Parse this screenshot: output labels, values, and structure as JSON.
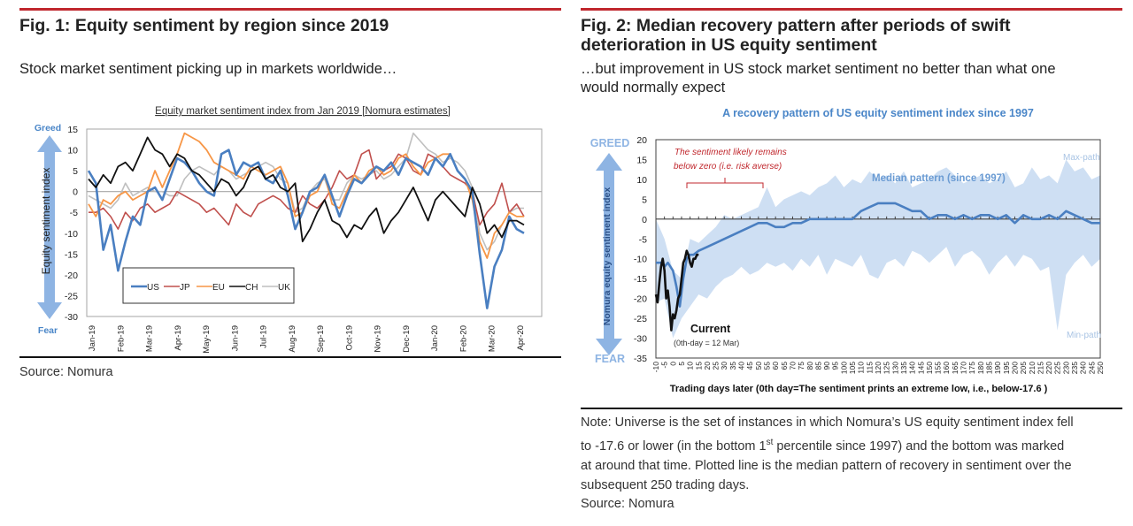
{
  "fig1": {
    "title": "Fig. 1: Equity sentiment by region since 2019",
    "subtitle": "Stock market sentiment picking up in markets worldwide…",
    "source": "Source: Nomura"
  },
  "fig2": {
    "title_line1": "Fig. 2: Median recovery pattern after periods of swift",
    "title_line2": "deterioration in US equity sentiment",
    "subtitle_line1": "…but improvement in US stock market sentiment no better than what one",
    "subtitle_line2": "would normally expect",
    "note_line1": "Note: Universe is the set of instances in which Nomura’s US equity sentiment index fell",
    "note_line2_pre": "to -17.6 or lower (in the bottom 1",
    "note_line2_sup": "st",
    "note_line2_post": " percentile since 1997) and the bottom was marked",
    "note_line3": "at around that time. Plotted line is the median pattern of recovery in sentiment over the",
    "note_line4": "subsequent 250 trading days.",
    "source": "Source: Nomura"
  },
  "colors": {
    "rule_red": "#c0272d",
    "us": "#4a7fc1",
    "jp": "#c0504d",
    "eu": "#f79646",
    "ch": "#111111",
    "uk": "#bfbfbf",
    "band": "#c5d9f1",
    "median": "#4a7fc1",
    "annotation_red": "#c0272d",
    "arrow_blue": "#8eb4e3",
    "label_blue": "#4a86c8"
  },
  "chart_data": [
    {
      "type": "line",
      "title": "Equity market sentiment index from Jan 2019 [Nomura estimates]",
      "ylabel": "Equity sentiment index",
      "y_top_label": "Greed",
      "y_bottom_label": "Fear",
      "ylim": [
        -30,
        15
      ],
      "yticks": [
        15,
        10,
        5,
        0,
        -5,
        -10,
        -15,
        -20,
        -25,
        -30
      ],
      "categories": [
        "Jan-19",
        "Feb-19",
        "Mar-19",
        "Apr-19",
        "May-19",
        "Jun-19",
        "Jul-19",
        "Aug-19",
        "Sep-19",
        "Oct-19",
        "Nov-19",
        "Dec-19",
        "Jan-20",
        "Feb-20",
        "Mar-20",
        "Apr-20"
      ],
      "legend": [
        "US",
        "JP",
        "EU",
        "CH",
        "UK"
      ],
      "legend_position": "bottom-left",
      "x_note": "values sampled roughly twice per month (index 0 = early Jan-19, last = mid Apr-20)",
      "series": [
        {
          "name": "US",
          "values": [
            5,
            2,
            -14,
            -8,
            -19,
            -12,
            -6,
            -8,
            0,
            1,
            -2,
            3,
            8,
            7,
            5,
            2,
            0,
            -1,
            9,
            10,
            4,
            7,
            6,
            7,
            3,
            2,
            5,
            -1,
            -9,
            -5,
            0,
            1,
            4,
            -1,
            -6,
            -1,
            3,
            2,
            4,
            6,
            5,
            7,
            4,
            8,
            7,
            6,
            4,
            8,
            6,
            9,
            5,
            3,
            0,
            -15,
            -28,
            -18,
            -14,
            -6,
            -9,
            -10
          ]
        },
        {
          "name": "JP",
          "values": [
            -5,
            -5,
            -4,
            -6,
            -9,
            -5,
            -7,
            -4,
            -3,
            -5,
            -4,
            -3,
            0,
            -1,
            -2,
            -3,
            -5,
            -4,
            -6,
            -8,
            -3,
            -5,
            -6,
            -3,
            -2,
            -1,
            -2,
            -4,
            -5,
            -1,
            -3,
            -4,
            -2,
            1,
            5,
            3,
            4,
            9,
            10,
            3,
            5,
            6,
            9,
            8,
            5,
            4,
            9,
            8,
            6,
            4,
            3,
            2,
            0,
            -8,
            -5,
            -3,
            2,
            -5,
            -3,
            -6
          ]
        },
        {
          "name": "EU",
          "values": [
            -3,
            -6,
            -2,
            -3,
            -1,
            0,
            -2,
            -1,
            0,
            5,
            1,
            5,
            9,
            14,
            13,
            12,
            10,
            7,
            6,
            5,
            4,
            3,
            6,
            5,
            4,
            5,
            6,
            2,
            -6,
            -5,
            -1,
            0,
            4,
            -3,
            -4,
            0,
            4,
            2,
            5,
            6,
            4,
            5,
            8,
            9,
            6,
            4,
            7,
            8,
            9,
            9,
            5,
            3,
            -2,
            -12,
            -16,
            -10,
            -8,
            -5,
            -6,
            -6
          ]
        },
        {
          "name": "CH",
          "values": [
            3,
            1,
            4,
            2,
            6,
            7,
            5,
            9,
            13,
            10,
            9,
            6,
            9,
            8,
            5,
            4,
            2,
            0,
            3,
            2,
            -1,
            1,
            5,
            6,
            3,
            4,
            1,
            0,
            2,
            -12,
            -9,
            -5,
            -2,
            -7,
            -8,
            -11,
            -8,
            -9,
            -6,
            -4,
            -10,
            -7,
            -5,
            -2,
            1,
            -3,
            -7,
            -2,
            0,
            -2,
            -4,
            -6,
            1,
            -3,
            -10,
            -8,
            -11,
            -7,
            -7,
            -8
          ]
        },
        {
          "name": "UK",
          "values": [
            -1,
            -2,
            -3,
            -4,
            -2,
            2,
            -1,
            0,
            1,
            0,
            0,
            -1,
            -1,
            3,
            5,
            6,
            5,
            4,
            6,
            5,
            3,
            4,
            5,
            6,
            7,
            6,
            3,
            2,
            -5,
            -4,
            0,
            2,
            3,
            -2,
            -2,
            2,
            4,
            3,
            4,
            5,
            3,
            4,
            6,
            8,
            14,
            12,
            10,
            9,
            7,
            8,
            7,
            5,
            1,
            -10,
            -14,
            -12,
            -8,
            -5,
            -4,
            -4
          ]
        }
      ]
    },
    {
      "type": "area",
      "title": "A recovery pattern of US equity sentiment index since 1997",
      "ylabel": "Nomura equity sentiment index",
      "y_top_label": "GREED",
      "y_bottom_label": "FEAR",
      "xlabel": "Trading days later (0th day=The sentiment prints an extreme low, i.e., below-17.6 )",
      "ylim": [
        -35,
        20
      ],
      "yticks": [
        20,
        15,
        10,
        5,
        0,
        -5,
        -10,
        -15,
        -20,
        -25,
        -30,
        -35
      ],
      "xlim": [
        -10,
        250
      ],
      "xticks": [
        -10,
        -5,
        0,
        5,
        10,
        15,
        20,
        25,
        30,
        35,
        40,
        45,
        50,
        55,
        60,
        65,
        70,
        75,
        80,
        85,
        90,
        95,
        100,
        105,
        110,
        115,
        120,
        125,
        130,
        135,
        140,
        145,
        150,
        155,
        160,
        165,
        170,
        175,
        180,
        185,
        190,
        195,
        200,
        205,
        210,
        215,
        220,
        225,
        230,
        235,
        240,
        245,
        250
      ],
      "annotations": {
        "bracket_note_line1": "The sentiment likely remains",
        "bracket_note_line2": "below zero (i.e. risk averse)",
        "median_label": "Median pattern (since 1997)",
        "max_label": "Max-path",
        "min_label": "Min-path",
        "current_label": "Current",
        "current_sub": "(0th-day = 12 Mar)"
      },
      "series": [
        {
          "name": "Max-path",
          "x": [
            -10,
            -5,
            0,
            5,
            10,
            15,
            20,
            25,
            30,
            35,
            40,
            45,
            50,
            55,
            60,
            65,
            70,
            75,
            80,
            85,
            90,
            95,
            100,
            105,
            110,
            115,
            120,
            125,
            130,
            135,
            140,
            145,
            150,
            155,
            160,
            165,
            170,
            175,
            180,
            185,
            190,
            195,
            200,
            205,
            210,
            215,
            220,
            225,
            230,
            235,
            240,
            245,
            250
          ],
          "values": [
            0,
            -5,
            -13,
            -15,
            -5,
            -6,
            -4,
            -2,
            1,
            0,
            1,
            2,
            3,
            8,
            3,
            5,
            6,
            7,
            6,
            8,
            9,
            11,
            8,
            10,
            9,
            12,
            10,
            11,
            9,
            12,
            8,
            9,
            10,
            12,
            13,
            11,
            9,
            10,
            11,
            9,
            10,
            12,
            8,
            9,
            13,
            10,
            11,
            9,
            15,
            12,
            13,
            10,
            11
          ]
        },
        {
          "name": "Min-path",
          "x": [
            -10,
            -5,
            0,
            5,
            10,
            15,
            20,
            25,
            30,
            35,
            40,
            45,
            50,
            55,
            60,
            65,
            70,
            75,
            80,
            85,
            90,
            95,
            100,
            105,
            110,
            115,
            120,
            125,
            130,
            135,
            140,
            145,
            150,
            155,
            160,
            165,
            170,
            175,
            180,
            185,
            190,
            195,
            200,
            205,
            210,
            215,
            220,
            225,
            230,
            235,
            240,
            245,
            250
          ],
          "values": [
            -21,
            -20,
            -30,
            -25,
            -22,
            -19,
            -20,
            -17,
            -15,
            -14,
            -12,
            -14,
            -13,
            -11,
            -12,
            -11,
            -13,
            -10,
            -12,
            -9,
            -14,
            -10,
            -11,
            -12,
            -9,
            -14,
            -15,
            -11,
            -10,
            -12,
            -8,
            -9,
            -11,
            -9,
            -7,
            -12,
            -9,
            -8,
            -10,
            -14,
            -11,
            -9,
            -12,
            -9,
            -10,
            -13,
            -12,
            -28,
            -14,
            -11,
            -9,
            -12,
            -10
          ]
        },
        {
          "name": "Median",
          "x": [
            -10,
            -7,
            -5,
            -3,
            0,
            2,
            4,
            6,
            8,
            10,
            12,
            15,
            20,
            25,
            30,
            35,
            40,
            45,
            50,
            55,
            60,
            65,
            70,
            75,
            80,
            85,
            90,
            95,
            100,
            105,
            110,
            115,
            120,
            125,
            130,
            135,
            140,
            145,
            150,
            155,
            160,
            165,
            170,
            175,
            180,
            185,
            190,
            195,
            200,
            205,
            210,
            215,
            220,
            225,
            230,
            235,
            240,
            245,
            250
          ],
          "values": [
            -11,
            -11,
            -12,
            -11,
            -13,
            -17,
            -22,
            -15,
            -10,
            -9,
            -9,
            -8,
            -7,
            -6,
            -5,
            -4,
            -3,
            -2,
            -1,
            -1,
            -2,
            -2,
            -1,
            -1,
            0,
            0,
            0,
            0,
            0,
            0,
            2,
            3,
            4,
            4,
            4,
            3,
            2,
            2,
            0,
            1,
            1,
            0,
            1,
            0,
            1,
            1,
            0,
            1,
            -1,
            1,
            0,
            0,
            1,
            0,
            2,
            1,
            0,
            -1,
            -1
          ]
        },
        {
          "name": "Current",
          "x": [
            -10,
            -9,
            -8,
            -7,
            -6,
            -5,
            -4,
            -3,
            -2,
            -1,
            0,
            1,
            2,
            3,
            4,
            5,
            6,
            7,
            8,
            9,
            10,
            11,
            12,
            13,
            14,
            15
          ],
          "values": [
            -19,
            -21,
            -16,
            -12,
            -10,
            -13,
            -20,
            -18,
            -22,
            -28,
            -24,
            -25,
            -23,
            -20,
            -19,
            -15,
            -11,
            -10,
            -8,
            -9,
            -11,
            -12,
            -10,
            -10,
            -9,
            -9
          ]
        }
      ]
    }
  ]
}
